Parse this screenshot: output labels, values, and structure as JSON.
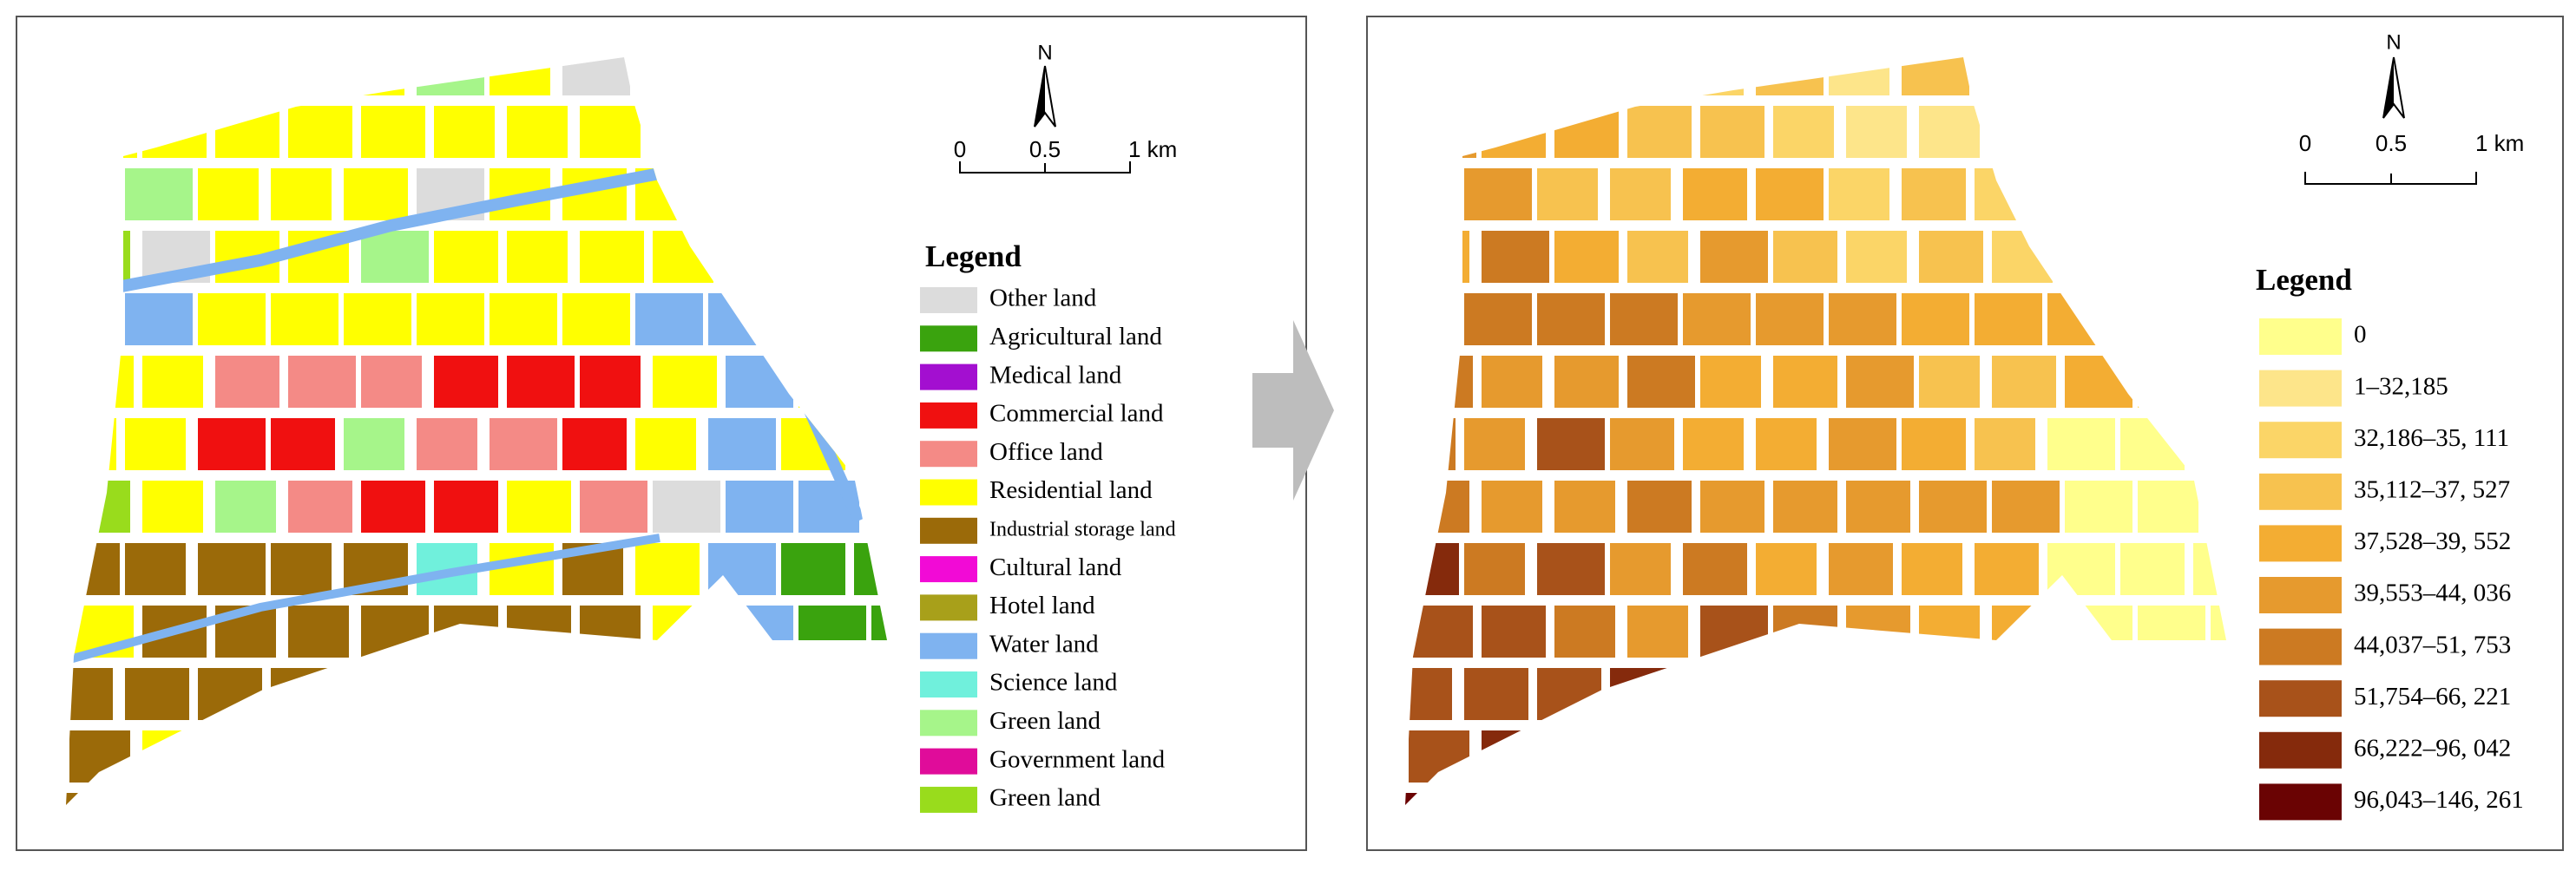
{
  "left_panel": {
    "north": "N",
    "scale_labels": [
      "0",
      "0.5",
      "1 km"
    ],
    "legend": {
      "title": "Legend",
      "items": [
        {
          "label": "Other land",
          "color": "#dcdcdc"
        },
        {
          "label": "Agricultural land",
          "color": "#3aa30e"
        },
        {
          "label": "Medical land",
          "color": "#a30fd0"
        },
        {
          "label": "Commercial land",
          "color": "#f01010"
        },
        {
          "label": "Office land",
          "color": "#f48a86"
        },
        {
          "label": "Residential land",
          "color": "#ffff00"
        },
        {
          "label": "Industrial storage land",
          "color": "#9b6a09"
        },
        {
          "label": "Cultural land",
          "color": "#f20ad6"
        },
        {
          "label": "Hotel land",
          "color": "#a8a01a"
        },
        {
          "label": "Water land",
          "color": "#7fb3f0"
        },
        {
          "label": "Science  land",
          "color": "#70f0dc"
        },
        {
          "label": "Green  land",
          "color": "#a6f58a"
        },
        {
          "label": "Government land",
          "color": "#e00c9a"
        },
        {
          "label": "Green  land",
          "color": "#99dc1c"
        }
      ]
    }
  },
  "right_panel": {
    "north": "N",
    "scale_labels": [
      "0",
      "0.5",
      "1 km"
    ],
    "legend": {
      "title": "Legend",
      "items": [
        {
          "label": "0",
          "color": "#ffff8c"
        },
        {
          "label": "1–32,185",
          "color": "#fde58a"
        },
        {
          "label": "32,186–35, 111",
          "color": "#fbd567"
        },
        {
          "label": "35,112–37, 527",
          "color": "#f7c24f"
        },
        {
          "label": "37,528–39, 552",
          "color": "#f3ad33"
        },
        {
          "label": "39,553–44, 036",
          "color": "#e69a2e"
        },
        {
          "label": "44,037–51, 753",
          "color": "#cc7a22"
        },
        {
          "label": "51,754–66, 221",
          "color": "#a8521a"
        },
        {
          "label": "66,222–96, 042",
          "color": "#852a0c"
        },
        {
          "label": "96,043–146, 261",
          "color": "#6a0303"
        }
      ]
    }
  }
}
